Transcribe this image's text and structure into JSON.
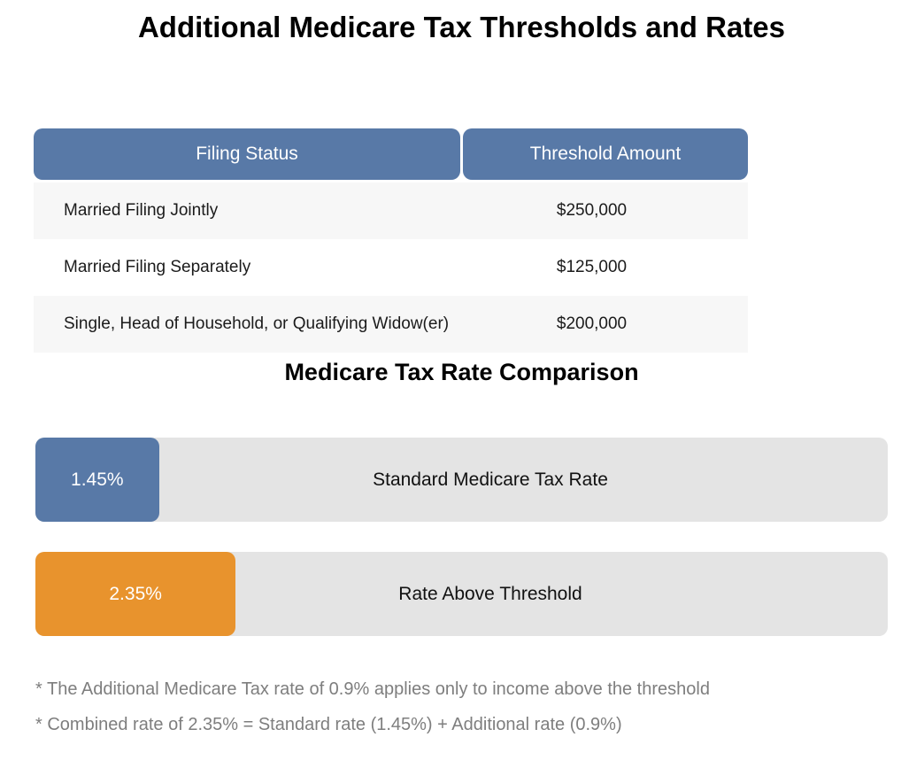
{
  "page": {
    "title": "Additional Medicare Tax Thresholds and Rates"
  },
  "table": {
    "headers": {
      "filing_status": "Filing Status",
      "threshold_amount": "Threshold Amount"
    },
    "rows": [
      {
        "status": "Married Filing Jointly",
        "amount": "$250,000"
      },
      {
        "status": "Married Filing Separately",
        "amount": "$125,000"
      },
      {
        "status": "Single, Head of Household, or Qualifying Widow(er)",
        "amount": "$200,000"
      }
    ]
  },
  "comparison": {
    "title": "Medicare Tax Rate Comparison",
    "bars": [
      {
        "value": 1.45,
        "value_label": "1.45%",
        "label": "Standard Medicare Tax Rate",
        "color": "#5879a7"
      },
      {
        "value": 2.35,
        "value_label": "2.35%",
        "label": "Rate Above Threshold",
        "color": "#e8932d"
      }
    ]
  },
  "footnotes": [
    "* The Additional Medicare Tax rate of 0.9% applies only to income above the threshold",
    "* Combined rate of 2.35% = Standard rate (1.45%) + Additional rate (0.9%)"
  ],
  "colors": {
    "header_blue": "#5879a7",
    "accent_orange": "#e8932d",
    "bar_track_gray": "#e4e4e4",
    "row_stripe_gray": "#f7f7f7",
    "footnote_gray": "#7e7e7e"
  },
  "chart_data": [
    {
      "type": "table",
      "title": "Additional Medicare Tax Thresholds and Rates",
      "columns": [
        "Filing Status",
        "Threshold Amount"
      ],
      "rows": [
        [
          "Married Filing Jointly",
          "$250,000"
        ],
        [
          "Married Filing Separately",
          "$125,000"
        ],
        [
          "Single, Head of Household, or Qualifying Widow(er)",
          "$200,000"
        ]
      ]
    },
    {
      "type": "bar",
      "title": "Medicare Tax Rate Comparison",
      "orientation": "horizontal",
      "categories": [
        "Standard Medicare Tax Rate",
        "Rate Above Threshold"
      ],
      "values": [
        1.45,
        2.35
      ],
      "unit": "%",
      "data_labels": [
        "1.45%",
        "2.35%"
      ],
      "bar_colors": [
        "#5879a7",
        "#e8932d"
      ],
      "xlim": [
        0,
        10
      ],
      "grid": false,
      "legend": false,
      "annotations": [
        "* The Additional Medicare Tax rate of 0.9% applies only to income above the threshold",
        "* Combined rate of 2.35% = Standard rate (1.45%) + Additional rate (0.9%)"
      ]
    }
  ]
}
